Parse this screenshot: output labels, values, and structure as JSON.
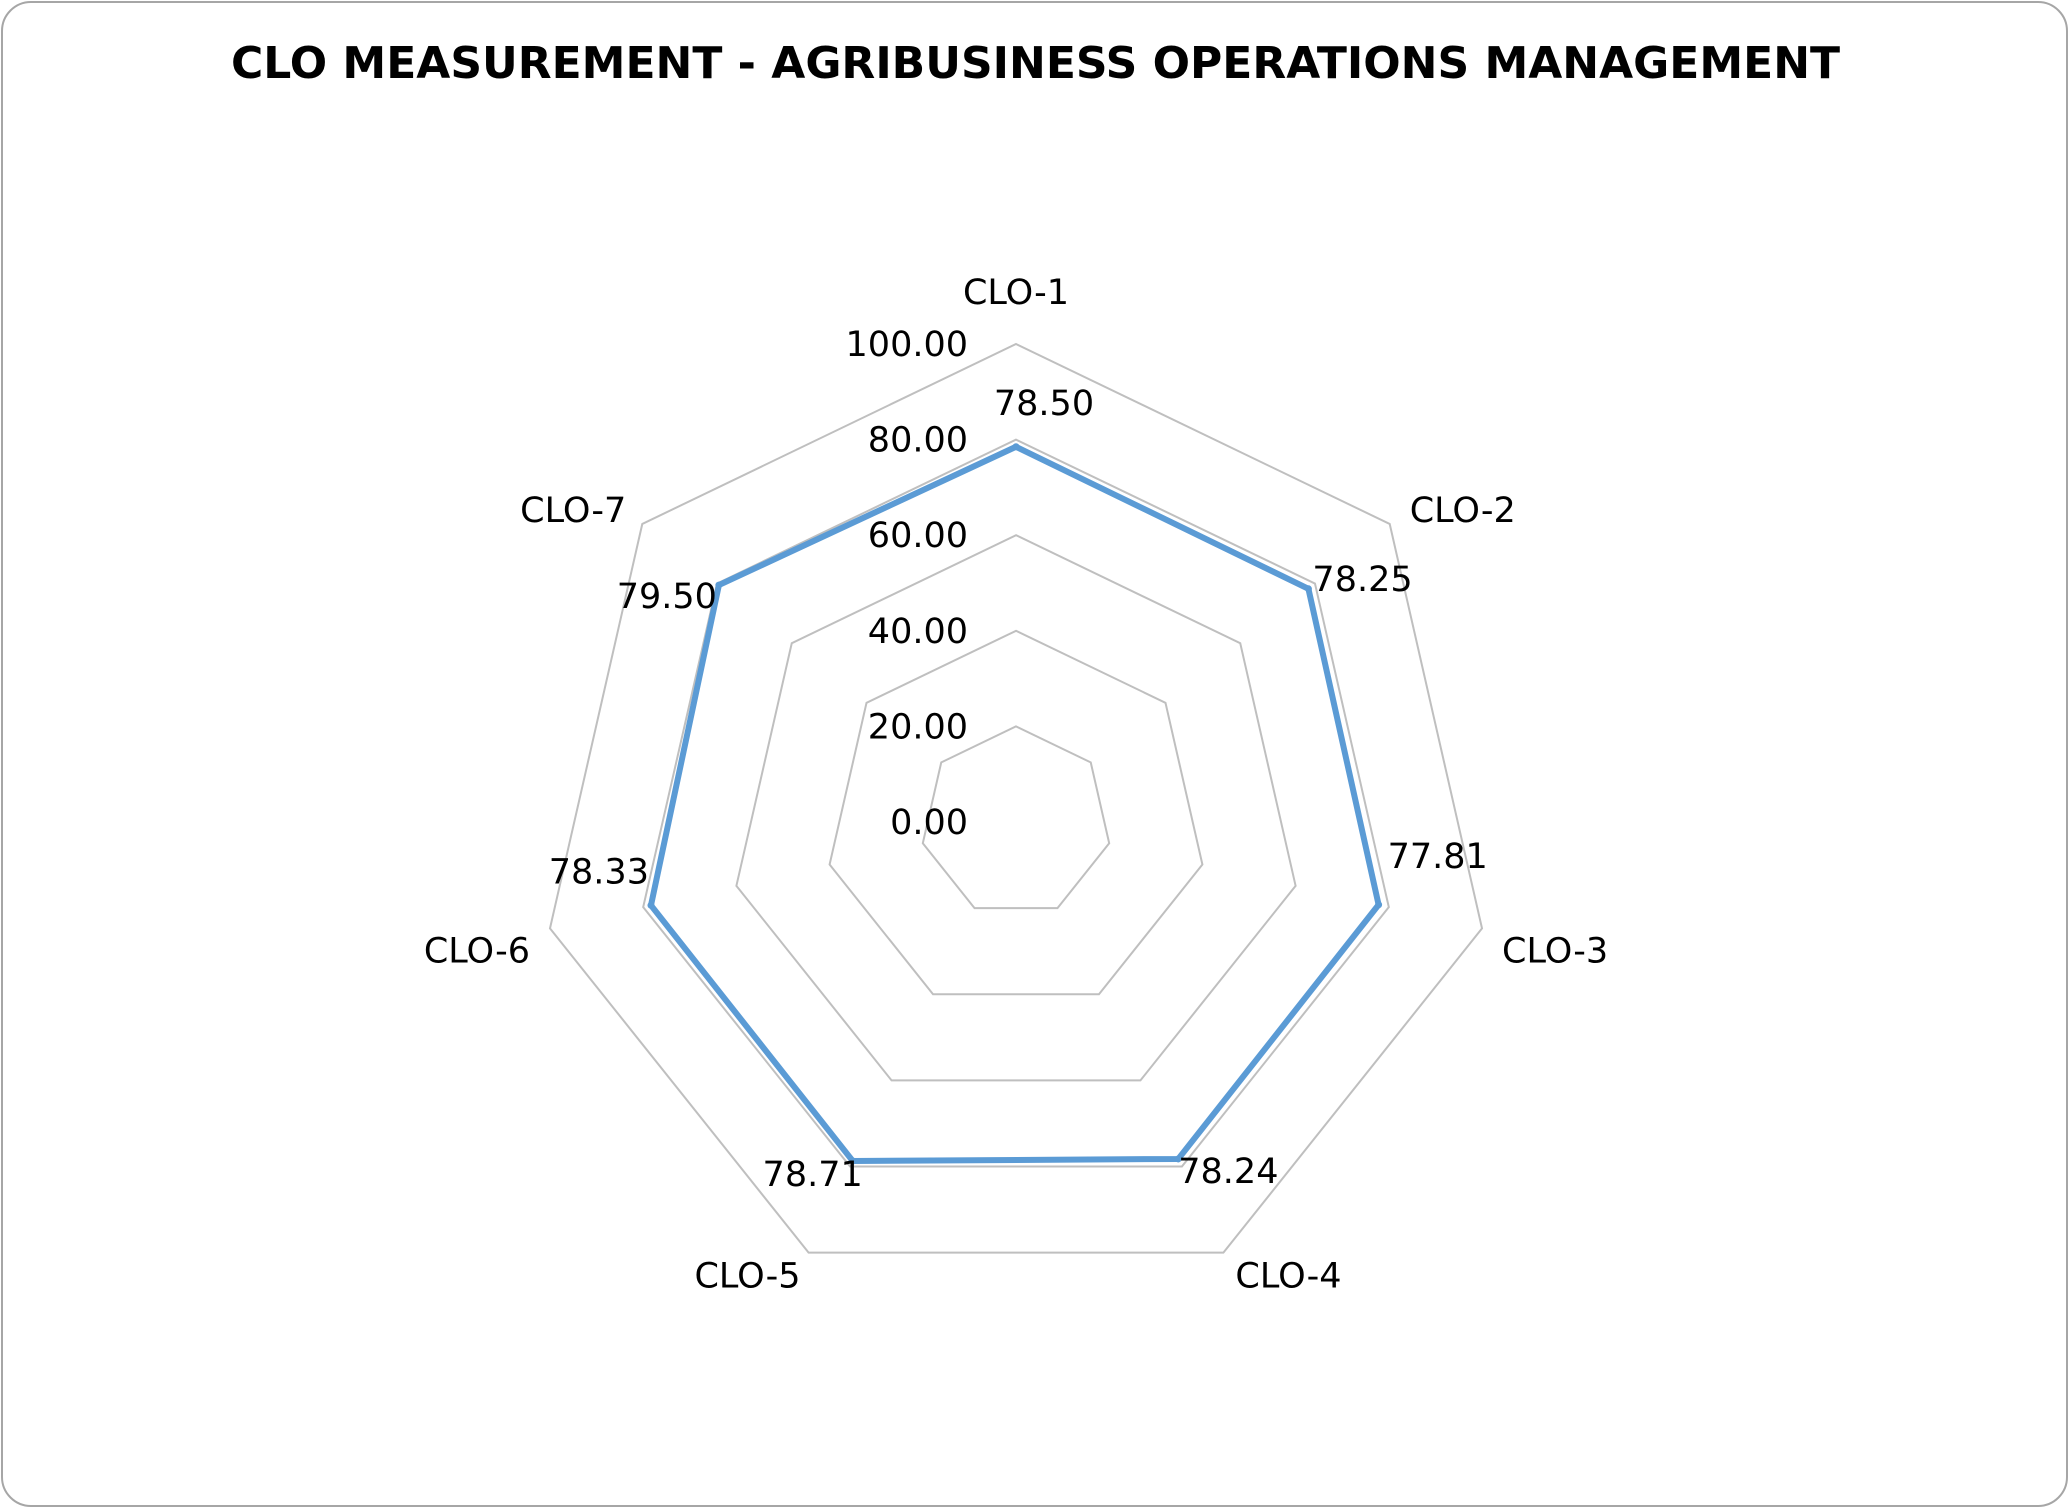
{
  "chart_data": {
    "type": "radar",
    "title": "CLO MEASUREMENT - AGRIBUSINESS OPERATIONS MANAGEMENT",
    "categories": [
      "CLO-1",
      "CLO-2",
      "CLO-3",
      "CLO-4",
      "CLO-5",
      "CLO-6",
      "CLO-7"
    ],
    "series": [
      {
        "values": [
          78.5,
          78.25,
          77.81,
          78.24,
          78.71,
          78.33,
          79.5
        ],
        "data_labels": [
          "78.50",
          "78.25",
          "77.81",
          "78.24",
          "78.71",
          "78.33",
          "79.50"
        ],
        "color": "#5b9bd5"
      }
    ],
    "rlim": [
      0,
      100
    ],
    "ticks": [
      0,
      20,
      40,
      60,
      80,
      100
    ],
    "tick_labels": [
      "0.00",
      "20.00",
      "40.00",
      "60.00",
      "80.00",
      "100.00"
    ],
    "grid": true,
    "grid_color": "#bfbfbf",
    "legend": "none"
  }
}
